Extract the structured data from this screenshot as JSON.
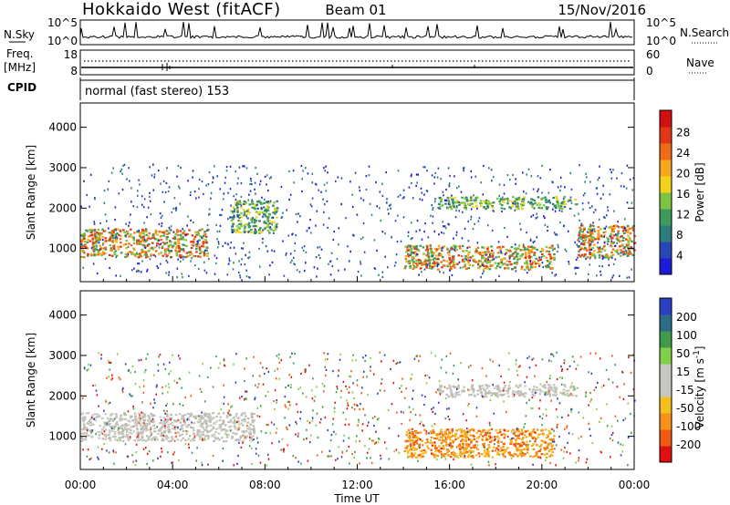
{
  "header": {
    "radar": "Hokkaido West (fitACF)",
    "beam": "Beam 01",
    "date": "15/Nov/2016"
  },
  "top_panels": {
    "nsky_label": "N.Sky",
    "nsearch_label": "N.Search",
    "nsky_ticks": [
      "10^5",
      "10^0"
    ],
    "freq_label_1": "Freq.",
    "freq_label_2": "[MHz]",
    "freq_ticks": [
      "18",
      "8"
    ],
    "nave_label": "Nave",
    "nave_ticks": [
      "60",
      "0"
    ],
    "cpid_label": "CPID",
    "cpid_text": "normal (fast stereo) 153"
  },
  "chart_data": [
    {
      "type": "heatmap",
      "name": "power",
      "ylabel": "Slant Range [km]",
      "xlabel": "",
      "ylim": [
        180,
        4600
      ],
      "yticks": [
        1000,
        2000,
        3000,
        4000
      ],
      "colorbar": {
        "label": "Power [dB]",
        "ticks": [
          "28",
          "24",
          "20",
          "16",
          "12",
          "8",
          "4"
        ],
        "colors": [
          "#1c1cd6",
          "#2747b8",
          "#2f7c7c",
          "#3d9a5a",
          "#7cc544",
          "#f2d21c",
          "#f7a71c",
          "#ef6c17",
          "#e23717",
          "#d21010"
        ]
      },
      "echo_bands": [
        {
          "t_start": 0,
          "t_end": 5.5,
          "range_start": 800,
          "range_end": 1500,
          "level": "high"
        },
        {
          "t_start": 6.5,
          "t_end": 8.5,
          "range_start": 1400,
          "range_end": 2200,
          "level": "medium"
        },
        {
          "t_start": 14,
          "t_end": 20.5,
          "range_start": 500,
          "range_end": 1100,
          "level": "high"
        },
        {
          "t_start": 15.5,
          "t_end": 21.5,
          "range_start": 2000,
          "range_end": 2300,
          "level": "medium"
        },
        {
          "t_start": 21.5,
          "t_end": 24,
          "range_start": 800,
          "range_end": 1600,
          "level": "high"
        }
      ]
    },
    {
      "type": "heatmap",
      "name": "velocity",
      "ylabel": "Slant Range [km]",
      "xlabel": "Time UT",
      "xticks": [
        "00:00",
        "04:00",
        "08:00",
        "12:00",
        "16:00",
        "20:00",
        "00:00"
      ],
      "ylim": [
        180,
        4600
      ],
      "yticks": [
        1000,
        2000,
        3000,
        4000
      ],
      "colorbar": {
        "label": "Velocity [m s",
        "label_sup": "-1",
        "label_end": "]",
        "ticks": [
          "200",
          "100",
          "50",
          "15",
          "-15",
          "-50",
          "-100",
          "-200"
        ],
        "colors": [
          "#e01010",
          "#f15a10",
          "#f79117",
          "#f4c01d",
          "#c8c8c0",
          "#c8c8c0",
          "#80d04a",
          "#3f9a49",
          "#2c6d86",
          "#2a3fc4"
        ]
      },
      "echo_bands": [
        {
          "t_start": 0,
          "t_end": 7.5,
          "range_start": 900,
          "range_end": 1600,
          "level": "near-zero"
        },
        {
          "t_start": 14,
          "t_end": 20.5,
          "range_start": 500,
          "range_end": 1200,
          "level": "negative"
        },
        {
          "t_start": 15.5,
          "t_end": 21.5,
          "range_start": 2000,
          "range_end": 2300,
          "level": "near-zero"
        }
      ]
    }
  ]
}
